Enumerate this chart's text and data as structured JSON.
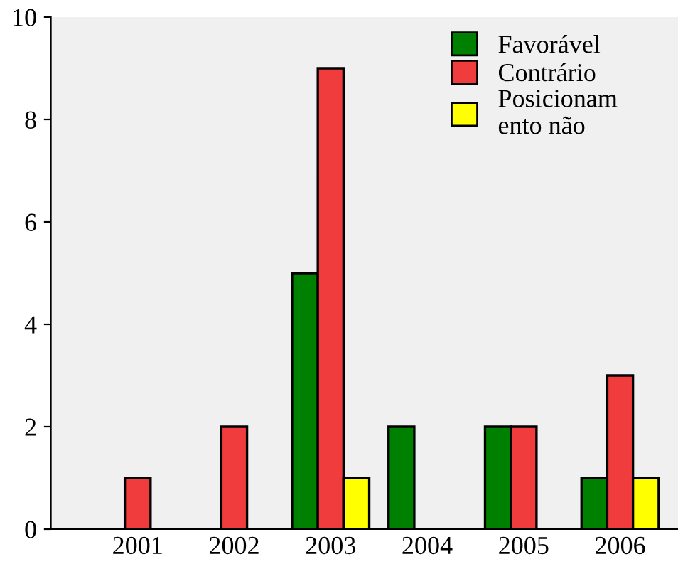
{
  "chart_data": {
    "type": "bar",
    "categories": [
      "2001",
      "2002",
      "2003",
      "2004",
      "2005",
      "2006"
    ],
    "series": [
      {
        "name": "Favorável",
        "color": "#008000",
        "values": [
          null,
          null,
          5,
          2,
          2,
          1
        ]
      },
      {
        "name": "Contrário",
        "color": "#f03c3c",
        "values": [
          1,
          2,
          9,
          null,
          2,
          3
        ]
      },
      {
        "name": "Posicionam\nento não",
        "color": "#ffff00",
        "values": [
          null,
          null,
          1,
          null,
          null,
          1
        ]
      }
    ],
    "ylim": [
      0,
      10
    ],
    "yticks": [
      0,
      2,
      4,
      6,
      8,
      10
    ],
    "grid": false,
    "legend": "top right"
  }
}
